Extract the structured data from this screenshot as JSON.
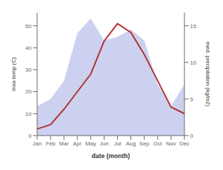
{
  "chart_data": {
    "type": "line",
    "xlabel": "date (month)",
    "ylabel": "max temp (C)",
    "y2label": "med. precipitation (kg/m2)",
    "categories": [
      "Jan",
      "Feb",
      "Mar",
      "Apr",
      "May",
      "Jun",
      "Jul",
      "Aug",
      "Sep",
      "Oct",
      "Nov",
      "Dec"
    ],
    "series": [
      {
        "type": "area",
        "axis": "y2",
        "color": "#b0b8e8",
        "values": [
          4.0,
          5.0,
          7.5,
          14.0,
          16.0,
          13.0,
          13.5,
          14.5,
          13.0,
          7.0,
          4.0,
          7.0
        ]
      },
      {
        "type": "line",
        "axis": "y",
        "color": "#b03030",
        "values": [
          3,
          5,
          12,
          20,
          28,
          43,
          51,
          47,
          37,
          25,
          13,
          10
        ]
      }
    ],
    "ylim": [
      0,
      56
    ],
    "yticks": [
      0,
      10,
      20,
      30,
      40,
      50
    ],
    "y2lim": [
      0,
      16.8
    ],
    "y2ticks": [
      0,
      5,
      10,
      15
    ],
    "grid": false
  }
}
